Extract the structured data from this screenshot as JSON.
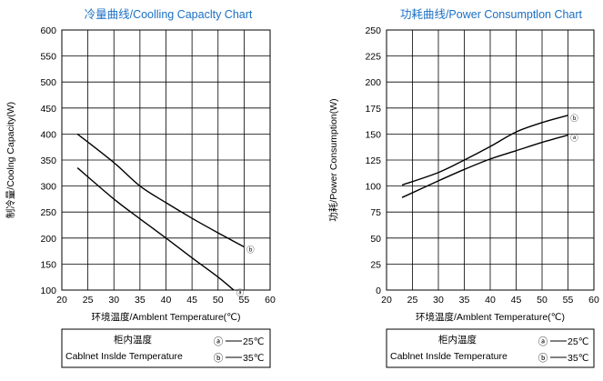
{
  "chart_data": [
    {
      "type": "line",
      "title": "冷量曲线/Coolling Capaclty Chart",
      "xlabel": "环境温度/Amblent Temperature(℃)",
      "ylabel": "制冷量/Coolng Capacity(W)",
      "xlim": [
        20,
        60
      ],
      "ylim": [
        100,
        600
      ],
      "xticks": [
        "20",
        "25",
        "30",
        "35",
        "40",
        "45",
        "50",
        "55",
        "60"
      ],
      "yticks": [
        "100",
        "150",
        "200",
        "250",
        "300",
        "350",
        "400",
        "450",
        "500",
        "550",
        "600"
      ],
      "grid": true,
      "series": [
        {
          "marker": "ⓑ",
          "x": [
            23,
            30,
            35,
            40,
            45,
            50,
            55
          ],
          "y": [
            400,
            345,
            300,
            268,
            238,
            210,
            183
          ]
        },
        {
          "marker": "ⓐ",
          "x": [
            23,
            30,
            35,
            40,
            45,
            50,
            53
          ],
          "y": [
            335,
            275,
            237,
            200,
            162,
            125,
            100
          ]
        }
      ],
      "legend": {
        "title": "柜内温度",
        "subtitle": "Cablnet Inslde Temperature",
        "entries": [
          {
            "marker": "ⓐ",
            "label": "25℃"
          },
          {
            "marker": "ⓑ",
            "label": "35℃"
          }
        ]
      }
    },
    {
      "type": "line",
      "title": "功耗曲线/Power Consumptlon Chart",
      "xlabel": "环境温度/Amblent Temperature(℃)",
      "ylabel": "功耗/Power Consumption(W)",
      "xlim": [
        20,
        60
      ],
      "ylim": [
        0,
        250
      ],
      "xticks": [
        "20",
        "25",
        "30",
        "35",
        "40",
        "45",
        "50",
        "55",
        "60"
      ],
      "yticks": [
        "0",
        "25",
        "50",
        "75",
        "100",
        "125",
        "150",
        "175",
        "200",
        "225",
        "250"
      ],
      "grid": true,
      "series": [
        {
          "marker": "ⓑ",
          "x": [
            23,
            30,
            35,
            40,
            45,
            50,
            55
          ],
          "y": [
            101,
            113,
            125,
            138,
            152,
            161,
            168
          ]
        },
        {
          "marker": "ⓐ",
          "x": [
            23,
            30,
            35,
            40,
            45,
            50,
            55
          ],
          "y": [
            89,
            105,
            116,
            126,
            134,
            142,
            149
          ]
        }
      ],
      "legend": {
        "title": "柜内温度",
        "subtitle": "Cablnet Inslde Temperature",
        "entries": [
          {
            "marker": "ⓐ",
            "label": "25℃"
          },
          {
            "marker": "ⓑ",
            "label": "35℃"
          }
        ]
      }
    }
  ]
}
